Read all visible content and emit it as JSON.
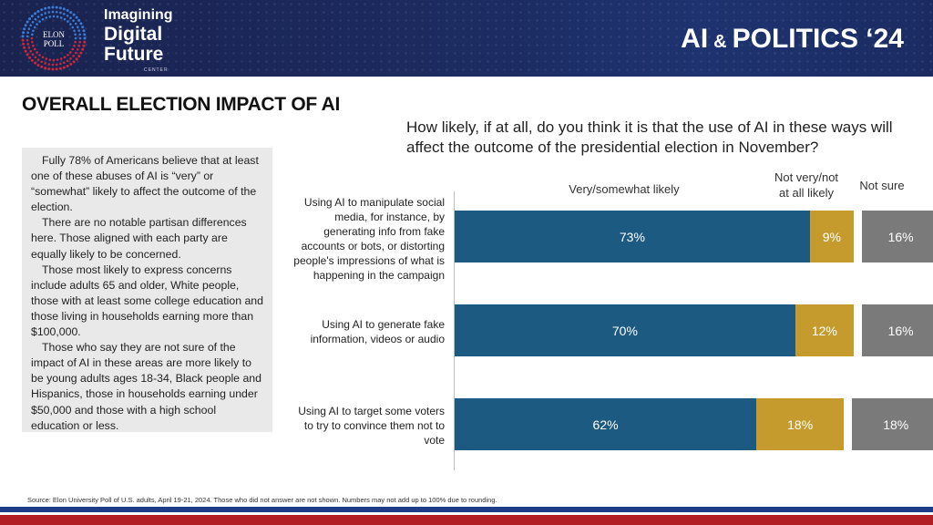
{
  "header": {
    "brand_line1": "Imagining",
    "brand_line2": "Digital",
    "brand_line3": "Future",
    "brand_line4": "CENTER",
    "logo_text_top": "ELON",
    "logo_text_bottom": "POLL",
    "title_part1": "AI",
    "title_amp": "&",
    "title_part2": "POLITICS ‘24"
  },
  "page_title": "OVERALL ELECTION IMPACT OF AI",
  "question": "How likely, if at all, do you think it is that the use of AI in these ways will affect the outcome of the presidential election in November?",
  "panel": {
    "paragraphs": [
      "Fully 78% of Americans believe that at least one of these abuses of AI is “very” or “somewhat” likely to affect the outcome of the election.",
      "There are no notable partisan differences here. Those aligned with each party are equally likely to be concerned.",
      "Those most likely to express concerns include adults 65 and older, White people, those with at least some college education and those living in households earning more than $100,000.",
      "Those who say they are not sure of the impact of AI in these areas are more likely to be young adults ages 18-34, Black people and Hispanics, those in households earning under $50,000 and those with a high school education or less."
    ]
  },
  "chart_data": {
    "type": "bar",
    "orientation": "horizontal",
    "stacked": true,
    "categories": [
      "Using AI to manipulate social media, for instance, by generating info from fake accounts or bots, or distorting people's impressions of what is happening in the campaign",
      "Using AI to generate fake information, videos or audio",
      "Using AI to target some voters to try to convince them not to vote"
    ],
    "series": [
      {
        "name": "Very/somewhat likely",
        "color": "#1d5a82",
        "values": [
          73,
          70,
          62
        ],
        "labels": [
          "73%",
          "70%",
          "62%"
        ]
      },
      {
        "name": "Not very/not at all likely",
        "color": "#c59b2d",
        "values": [
          9,
          12,
          18
        ],
        "labels": [
          "9%",
          "12%",
          "18%"
        ]
      },
      {
        "name": "Not sure",
        "color": "#7a7a7a",
        "values": [
          16,
          16,
          18
        ],
        "labels": [
          "16%",
          "16%",
          "18%"
        ]
      }
    ],
    "col_head_1": "Very/somewhat likely",
    "col_head_2a": "Not very/not",
    "col_head_2b": "at all likely",
    "col_head_3": "Not sure"
  },
  "source": "Source: Elon University Poll of U.S. adults, April 19-21, 2024. Those who did not answer are not shown. Numbers may not add up to 100% due to rounding."
}
